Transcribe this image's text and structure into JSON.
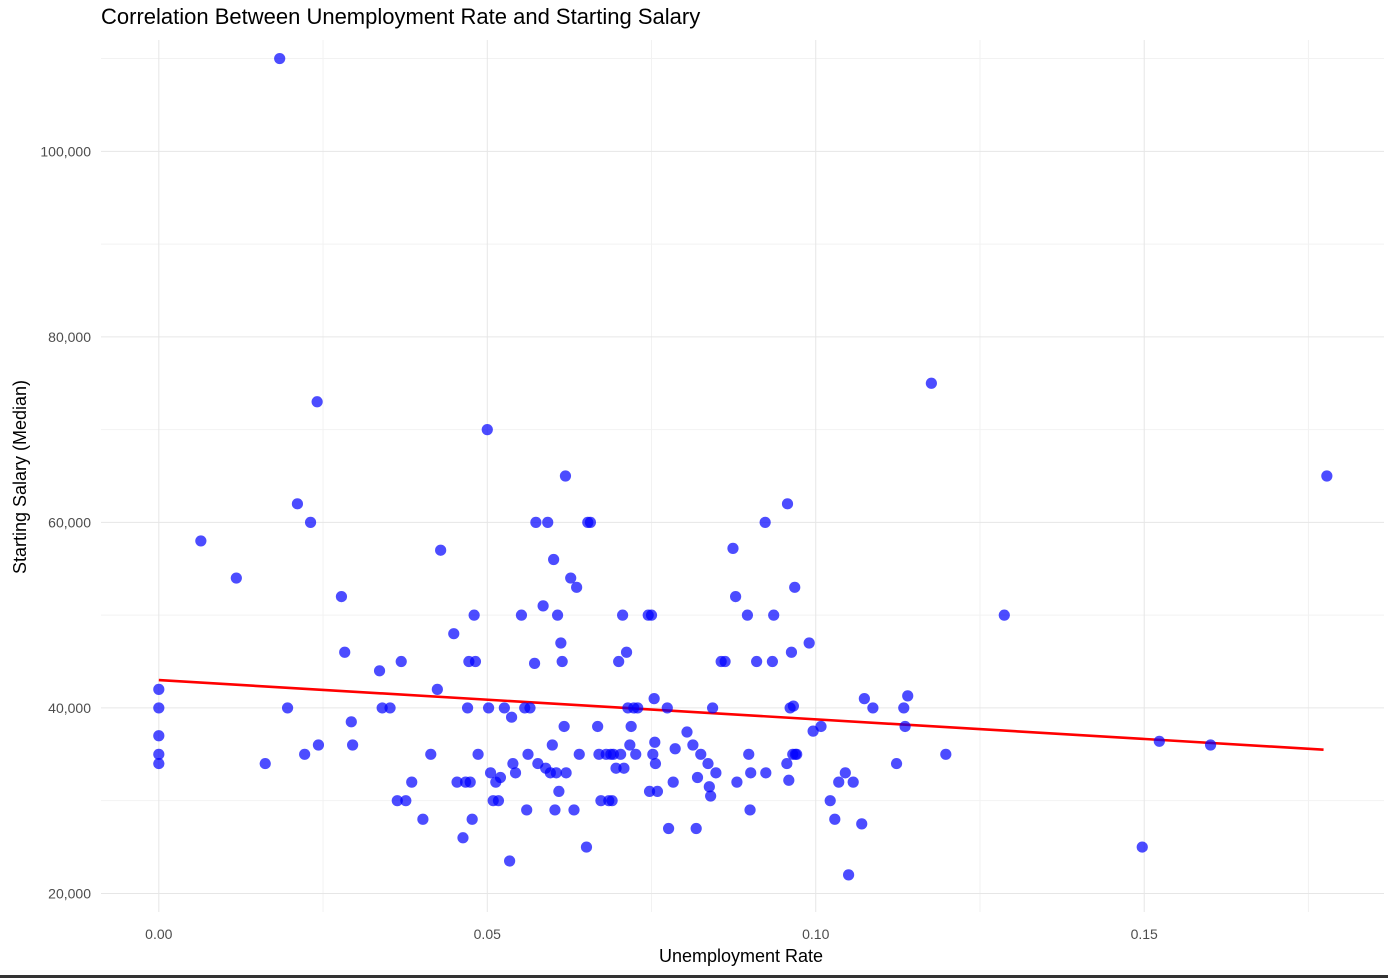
{
  "chart_data": {
    "type": "scatter",
    "title": "Correlation Between Unemployment Rate and Starting Salary",
    "xlabel": "Unemployment Rate",
    "ylabel": "Starting Salary (Median)",
    "xlim": [
      -0.0088,
      0.1865
    ],
    "ylim": [
      18000,
      112000
    ],
    "x_ticks": [
      0.0,
      0.05,
      0.1,
      0.15
    ],
    "x_tick_labels": [
      "0.00",
      "0.05",
      "0.10",
      "0.15"
    ],
    "x_minor_ticks": [
      0.025,
      0.075,
      0.125,
      0.175
    ],
    "y_ticks": [
      20000,
      40000,
      60000,
      80000,
      100000
    ],
    "y_tick_labels": [
      "20,000",
      "40,000",
      "60,000",
      "80,000",
      "100,000"
    ],
    "y_minor_ticks": [
      30000,
      50000,
      70000,
      90000,
      110000
    ],
    "grid": true,
    "point_color": "#0000ff",
    "line_color": "#ff0000",
    "trend_line": {
      "x": [
        0.0,
        0.1773
      ],
      "y": [
        43000,
        35500
      ]
    },
    "points": [
      [
        0.0,
        42000
      ],
      [
        0.0,
        40000
      ],
      [
        0.0,
        37000
      ],
      [
        0.0,
        35000
      ],
      [
        0.0,
        34000
      ],
      [
        0.0064,
        58000
      ],
      [
        0.0118,
        54000
      ],
      [
        0.0162,
        34000
      ],
      [
        0.0184,
        110000
      ],
      [
        0.0196,
        40000
      ],
      [
        0.0211,
        62000
      ],
      [
        0.0222,
        35000
      ],
      [
        0.0231,
        60000
      ],
      [
        0.0241,
        73000
      ],
      [
        0.0243,
        36000
      ],
      [
        0.0278,
        52000
      ],
      [
        0.0283,
        46000
      ],
      [
        0.0293,
        38500
      ],
      [
        0.0295,
        36000
      ],
      [
        0.0336,
        44000
      ],
      [
        0.034,
        40000
      ],
      [
        0.0352,
        40000
      ],
      [
        0.0363,
        30000
      ],
      [
        0.0369,
        45000
      ],
      [
        0.0376,
        30000
      ],
      [
        0.0385,
        32000
      ],
      [
        0.0402,
        28000
      ],
      [
        0.0414,
        35000
      ],
      [
        0.0424,
        42000
      ],
      [
        0.0429,
        57000
      ],
      [
        0.0449,
        48000
      ],
      [
        0.0454,
        32000
      ],
      [
        0.0463,
        26000
      ],
      [
        0.0467,
        32000
      ],
      [
        0.047,
        40000
      ],
      [
        0.0472,
        45000
      ],
      [
        0.0474,
        32000
      ],
      [
        0.0477,
        28000
      ],
      [
        0.048,
        50000
      ],
      [
        0.0482,
        45000
      ],
      [
        0.0486,
        35000
      ],
      [
        0.05,
        70000
      ],
      [
        0.0502,
        40000
      ],
      [
        0.0505,
        33000
      ],
      [
        0.0509,
        30000
      ],
      [
        0.0513,
        32000
      ],
      [
        0.0517,
        30000
      ],
      [
        0.052,
        32500
      ],
      [
        0.0526,
        40000
      ],
      [
        0.0534,
        23500
      ],
      [
        0.0537,
        39000
      ],
      [
        0.0539,
        34000
      ],
      [
        0.0543,
        33000
      ],
      [
        0.0552,
        50000
      ],
      [
        0.0557,
        40000
      ],
      [
        0.056,
        29000
      ],
      [
        0.0562,
        35000
      ],
      [
        0.0565,
        40000
      ],
      [
        0.0572,
        44800
      ],
      [
        0.0574,
        60000
      ],
      [
        0.0577,
        34000
      ],
      [
        0.0585,
        51000
      ],
      [
        0.0589,
        33500
      ],
      [
        0.0592,
        60000
      ],
      [
        0.0596,
        33000
      ],
      [
        0.0599,
        36000
      ],
      [
        0.0601,
        56000
      ],
      [
        0.0603,
        29000
      ],
      [
        0.0605,
        33000
      ],
      [
        0.0607,
        50000
      ],
      [
        0.0609,
        31000
      ],
      [
        0.0612,
        47000
      ],
      [
        0.0614,
        45000
      ],
      [
        0.0617,
        38000
      ],
      [
        0.0619,
        65000
      ],
      [
        0.062,
        33000
      ],
      [
        0.0627,
        54000
      ],
      [
        0.0632,
        29000
      ],
      [
        0.0636,
        53000
      ],
      [
        0.064,
        35000
      ],
      [
        0.0651,
        25000
      ],
      [
        0.0653,
        60000
      ],
      [
        0.0657,
        60000
      ],
      [
        0.0668,
        38000
      ],
      [
        0.067,
        35000
      ],
      [
        0.0673,
        30000
      ],
      [
        0.0681,
        35000
      ],
      [
        0.0685,
        30000
      ],
      [
        0.0688,
        35000
      ],
      [
        0.069,
        30000
      ],
      [
        0.0692,
        35000
      ],
      [
        0.0696,
        33500
      ],
      [
        0.07,
        45000
      ],
      [
        0.0703,
        35000
      ],
      [
        0.0706,
        50000
      ],
      [
        0.0708,
        33500
      ],
      [
        0.0712,
        46000
      ],
      [
        0.0714,
        40000
      ],
      [
        0.0717,
        36000
      ],
      [
        0.0719,
        38000
      ],
      [
        0.0723,
        40000
      ],
      [
        0.0726,
        35000
      ],
      [
        0.0729,
        40000
      ],
      [
        0.0745,
        50000
      ],
      [
        0.0747,
        31000
      ],
      [
        0.075,
        50000
      ],
      [
        0.0752,
        35000
      ],
      [
        0.0754,
        41000
      ],
      [
        0.0755,
        36300
      ],
      [
        0.0756,
        34000
      ],
      [
        0.0759,
        31000
      ],
      [
        0.0774,
        40000
      ],
      [
        0.0776,
        27000
      ],
      [
        0.0783,
        32000
      ],
      [
        0.0786,
        35600
      ],
      [
        0.0804,
        37400
      ],
      [
        0.0813,
        36000
      ],
      [
        0.0818,
        27000
      ],
      [
        0.082,
        32500
      ],
      [
        0.0825,
        35000
      ],
      [
        0.0836,
        34000
      ],
      [
        0.0838,
        31500
      ],
      [
        0.084,
        30500
      ],
      [
        0.0843,
        40000
      ],
      [
        0.0848,
        33000
      ],
      [
        0.0856,
        45000
      ],
      [
        0.0862,
        45000
      ],
      [
        0.0874,
        57200
      ],
      [
        0.0878,
        52000
      ],
      [
        0.088,
        32000
      ],
      [
        0.0896,
        50000
      ],
      [
        0.0898,
        35000
      ],
      [
        0.09,
        29000
      ],
      [
        0.0901,
        33000
      ],
      [
        0.091,
        45000
      ],
      [
        0.0923,
        60000
      ],
      [
        0.0924,
        33000
      ],
      [
        0.0934,
        45000
      ],
      [
        0.0936,
        50000
      ],
      [
        0.0956,
        34000
      ],
      [
        0.0957,
        62000
      ],
      [
        0.0959,
        32200
      ],
      [
        0.0961,
        40000
      ],
      [
        0.0963,
        46000
      ],
      [
        0.0965,
        35000
      ],
      [
        0.0966,
        40200
      ],
      [
        0.0968,
        53000
      ],
      [
        0.0969,
        35000
      ],
      [
        0.0971,
        35000
      ],
      [
        0.099,
        47000
      ],
      [
        0.0996,
        37500
      ],
      [
        0.1008,
        38000
      ],
      [
        0.1022,
        30000
      ],
      [
        0.1029,
        28000
      ],
      [
        0.1035,
        32000
      ],
      [
        0.1045,
        33000
      ],
      [
        0.105,
        22000
      ],
      [
        0.1057,
        32000
      ],
      [
        0.107,
        27500
      ],
      [
        0.1074,
        41000
      ],
      [
        0.1087,
        40000
      ],
      [
        0.1123,
        34000
      ],
      [
        0.1134,
        40000
      ],
      [
        0.1136,
        38000
      ],
      [
        0.114,
        41300
      ],
      [
        0.1176,
        75000
      ],
      [
        0.1198,
        35000
      ],
      [
        0.1287,
        50000
      ],
      [
        0.1497,
        25000
      ],
      [
        0.1523,
        36400
      ],
      [
        0.1601,
        36000
      ],
      [
        0.1778,
        65000
      ]
    ]
  }
}
